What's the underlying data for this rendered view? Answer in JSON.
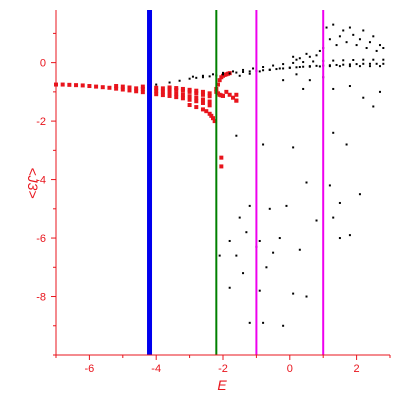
{
  "chart_data": {
    "type": "scatter",
    "xlabel": "E",
    "ylabel": "<J3>",
    "xlim": [
      -7.0,
      3.0
    ],
    "ylim": [
      -10.0,
      1.8
    ],
    "grid": false,
    "x_ticks": [
      -6,
      -4,
      -2,
      0,
      2
    ],
    "x_tick_labels": [
      "-6",
      "-4",
      "-2",
      "0",
      "2"
    ],
    "y_ticks": [
      0,
      -2,
      -4,
      -6,
      -8
    ],
    "y_tick_labels": [
      "0",
      "-2",
      "-4",
      "-6",
      "-8"
    ],
    "colors": {
      "axis": "#e8141c",
      "red_series": "#e8141c",
      "black_series": "#000000",
      "blue_line": "#0000ee",
      "green_line": "#008000",
      "magenta_line": "#ee00ee"
    },
    "vertical_lines": [
      {
        "x": -4.2,
        "color": "#0000ee",
        "width": "thick"
      },
      {
        "x": -2.2,
        "color": "#008000",
        "width": "thin"
      },
      {
        "x": -1.0,
        "color": "#ee00ee",
        "width": "thin"
      },
      {
        "x": 1.0,
        "color": "#ee00ee",
        "width": "thin"
      }
    ],
    "series": [
      {
        "color": "#e8141c",
        "marker": "square-large",
        "points": [
          [
            -7.0,
            -0.75
          ],
          [
            -6.8,
            -0.75
          ],
          [
            -6.6,
            -0.76
          ],
          [
            -6.4,
            -0.77
          ],
          [
            -6.2,
            -0.78
          ],
          [
            -6.0,
            -0.8
          ],
          [
            -5.8,
            -0.82
          ],
          [
            -5.6,
            -0.84
          ],
          [
            -5.4,
            -0.86
          ],
          [
            -5.2,
            -0.89
          ],
          [
            -5.0,
            -0.92
          ],
          [
            -4.8,
            -0.95
          ],
          [
            -4.6,
            -0.98
          ],
          [
            -4.4,
            -1.01
          ],
          [
            -4.2,
            -1.05
          ],
          [
            -4.0,
            -1.08
          ],
          [
            -3.8,
            -1.11
          ],
          [
            -3.6,
            -1.14
          ],
          [
            -3.4,
            -1.18
          ],
          [
            -3.2,
            -1.22
          ],
          [
            -3.0,
            -1.27
          ],
          [
            -2.8,
            -1.32
          ],
          [
            -2.6,
            -1.38
          ],
          [
            -2.4,
            -1.46
          ],
          [
            -5.2,
            -0.8
          ],
          [
            -5.0,
            -0.82
          ],
          [
            -4.8,
            -0.85
          ],
          [
            -4.6,
            -0.88
          ],
          [
            -4.4,
            -0.9
          ],
          [
            -4.2,
            -0.93
          ],
          [
            -4.0,
            -0.96
          ],
          [
            -3.8,
            -0.99
          ],
          [
            -3.6,
            -1.02
          ],
          [
            -3.4,
            -1.06
          ],
          [
            -3.2,
            -1.1
          ],
          [
            -3.0,
            -1.15
          ],
          [
            -2.8,
            -1.2
          ],
          [
            -2.6,
            -1.26
          ],
          [
            -2.4,
            -1.33
          ],
          [
            -4.4,
            -0.82
          ],
          [
            -4.2,
            -0.84
          ],
          [
            -4.0,
            -0.86
          ],
          [
            -3.8,
            -0.88
          ],
          [
            -3.6,
            -0.9
          ],
          [
            -3.4,
            -0.93
          ],
          [
            -3.2,
            -0.96
          ],
          [
            -3.0,
            -1.0
          ],
          [
            -2.8,
            -1.05
          ],
          [
            -2.6,
            -1.1
          ],
          [
            -2.4,
            -1.15
          ],
          [
            -3.6,
            -0.85
          ],
          [
            -3.4,
            -0.87
          ],
          [
            -3.2,
            -0.9
          ],
          [
            -3.0,
            -0.93
          ],
          [
            -2.8,
            -0.96
          ],
          [
            -2.6,
            -1.0
          ],
          [
            -2.4,
            -1.05
          ],
          [
            -3.0,
            -1.45
          ],
          [
            -2.8,
            -1.52
          ],
          [
            -2.6,
            -1.6
          ],
          [
            -2.5,
            -1.66
          ],
          [
            -2.4,
            -1.75
          ],
          [
            -2.35,
            -1.82
          ],
          [
            -2.3,
            -1.9
          ],
          [
            -2.25,
            -2.0
          ],
          [
            -2.2,
            -0.9
          ],
          [
            -2.15,
            -0.75
          ],
          [
            -2.1,
            -0.6
          ],
          [
            -2.05,
            -0.5
          ],
          [
            -2.0,
            -0.45
          ],
          [
            -1.95,
            -0.42
          ],
          [
            -1.9,
            -0.4
          ],
          [
            -1.85,
            -0.38
          ],
          [
            -1.8,
            -0.36
          ],
          [
            -2.2,
            -1.0
          ],
          [
            -2.15,
            -1.05
          ],
          [
            -2.1,
            -1.1
          ],
          [
            -2.05,
            -1.12
          ],
          [
            -2.0,
            -1.14
          ],
          [
            -1.9,
            -1.0
          ],
          [
            -1.8,
            -1.1
          ],
          [
            -1.7,
            -1.2
          ],
          [
            -1.6,
            -1.3
          ],
          [
            -1.6,
            -1.1
          ],
          [
            -1.6,
            -1.3
          ],
          [
            -2.05,
            -3.25
          ],
          [
            -2.05,
            -3.55
          ]
        ]
      },
      {
        "color": "#000000",
        "marker": "dot",
        "points": [
          [
            -4.0,
            -0.75
          ],
          [
            -3.6,
            -0.68
          ],
          [
            -3.3,
            -0.62
          ],
          [
            -3.0,
            -0.55
          ],
          [
            -2.8,
            -0.52
          ],
          [
            -2.6,
            -0.5
          ],
          [
            -2.4,
            -0.47
          ],
          [
            -2.2,
            -0.44
          ],
          [
            -2.0,
            -0.4
          ],
          [
            -1.8,
            -0.37
          ],
          [
            -1.6,
            -0.34
          ],
          [
            -1.4,
            -0.32
          ],
          [
            -1.2,
            -0.3
          ],
          [
            -1.0,
            -0.28
          ],
          [
            -0.8,
            -0.26
          ],
          [
            -0.6,
            -0.24
          ],
          [
            -0.4,
            -0.22
          ],
          [
            -0.2,
            -0.2
          ],
          [
            0.0,
            -0.18
          ],
          [
            0.2,
            -0.16
          ],
          [
            0.4,
            -0.14
          ],
          [
            0.6,
            -0.12
          ],
          [
            0.8,
            -0.11
          ],
          [
            1.0,
            -0.1
          ],
          [
            1.2,
            -0.09
          ],
          [
            1.4,
            -0.08
          ],
          [
            1.6,
            -0.07
          ],
          [
            1.8,
            -0.06
          ],
          [
            2.0,
            -0.05
          ],
          [
            2.2,
            -0.04
          ],
          [
            2.4,
            -0.04
          ],
          [
            2.6,
            -0.04
          ],
          [
            2.8,
            -0.04
          ],
          [
            -2.9,
            -0.48
          ],
          [
            -2.6,
            -0.45
          ],
          [
            -2.3,
            -0.4
          ],
          [
            -2.0,
            -0.35
          ],
          [
            -1.7,
            -0.3
          ],
          [
            -1.4,
            -0.25
          ],
          [
            -1.1,
            -0.2
          ],
          [
            -0.8,
            -0.15
          ],
          [
            -0.5,
            -0.1
          ],
          [
            -0.2,
            -0.05
          ],
          [
            0.1,
            -0.01
          ],
          [
            0.4,
            0.02
          ],
          [
            0.7,
            0.04
          ],
          [
            1.0,
            0.06
          ],
          [
            1.3,
            0.07
          ],
          [
            1.6,
            0.08
          ],
          [
            1.9,
            0.09
          ],
          [
            2.2,
            0.1
          ],
          [
            2.5,
            0.1
          ],
          [
            2.8,
            0.1
          ],
          [
            -1.5,
            -0.45
          ],
          [
            -1.2,
            -0.38
          ],
          [
            -0.9,
            -0.3
          ],
          [
            -0.6,
            -0.25
          ],
          [
            -0.3,
            -0.2
          ],
          [
            0.0,
            -0.17
          ],
          [
            0.3,
            -0.15
          ],
          [
            0.6,
            -0.14
          ],
          [
            0.9,
            -0.13
          ],
          [
            1.2,
            -0.12
          ],
          [
            1.5,
            -0.12
          ],
          [
            1.8,
            -0.12
          ],
          [
            2.1,
            -0.12
          ],
          [
            2.4,
            -0.12
          ],
          [
            2.7,
            -0.12
          ],
          [
            0.1,
            0.2
          ],
          [
            0.2,
            0.1
          ],
          [
            0.3,
            0.15
          ],
          [
            0.5,
            0.3
          ],
          [
            0.6,
            0.2
          ],
          [
            0.8,
            0.25
          ],
          [
            0.9,
            0.4
          ],
          [
            1.0,
            0.5
          ],
          [
            1.1,
            1.2
          ],
          [
            1.2,
            0.8
          ],
          [
            1.3,
            1.3
          ],
          [
            1.4,
            0.6
          ],
          [
            1.5,
            0.9
          ],
          [
            1.6,
            1.1
          ],
          [
            1.7,
            0.7
          ],
          [
            1.8,
            1.2
          ],
          [
            1.9,
            0.95
          ],
          [
            2.0,
            0.6
          ],
          [
            2.1,
            0.8
          ],
          [
            2.2,
            1.1
          ],
          [
            2.3,
            0.5
          ],
          [
            2.4,
            0.7
          ],
          [
            2.5,
            0.9
          ],
          [
            2.6,
            0.4
          ],
          [
            2.7,
            0.6
          ],
          [
            2.8,
            0.5
          ],
          [
            0.2,
            -0.4
          ],
          [
            0.6,
            -0.6
          ],
          [
            1.0,
            -0.5
          ],
          [
            1.3,
            -0.9
          ],
          [
            1.8,
            -0.8
          ],
          [
            2.2,
            -1.2
          ],
          [
            2.5,
            -1.5
          ],
          [
            2.7,
            -1.0
          ],
          [
            -0.2,
            -0.6
          ],
          [
            0.4,
            -0.9
          ],
          [
            -1.6,
            -2.5
          ],
          [
            -0.8,
            -2.8
          ],
          [
            0.1,
            -2.9
          ],
          [
            1.3,
            -2.4
          ],
          [
            1.7,
            -2.8
          ],
          [
            1.2,
            -4.2
          ],
          [
            2.1,
            -4.5
          ],
          [
            1.5,
            -4.8
          ],
          [
            0.5,
            -4.1
          ],
          [
            -1.2,
            -4.9
          ],
          [
            -0.6,
            -5.0
          ],
          [
            -0.1,
            -4.9
          ],
          [
            0.8,
            -5.4
          ],
          [
            1.3,
            -5.3
          ],
          [
            -1.5,
            -5.3
          ],
          [
            -1.3,
            -5.8
          ],
          [
            -0.3,
            -6.0
          ],
          [
            -1.8,
            -6.1
          ],
          [
            -0.9,
            -6.1
          ],
          [
            1.8,
            -5.9
          ],
          [
            -1.6,
            -6.6
          ],
          [
            -0.5,
            -6.5
          ],
          [
            0.3,
            -6.4
          ],
          [
            1.5,
            -6.0
          ],
          [
            -1.4,
            -7.2
          ],
          [
            -0.7,
            -7.0
          ],
          [
            -1.8,
            -7.7
          ],
          [
            -0.9,
            -7.8
          ],
          [
            0.1,
            -7.9
          ],
          [
            0.5,
            -8.0
          ],
          [
            -1.2,
            -8.9
          ],
          [
            -0.8,
            -8.9
          ],
          [
            -2.1,
            -6.6
          ],
          [
            -1.0,
            -6.3
          ],
          [
            -0.2,
            -9.0
          ]
        ]
      }
    ]
  }
}
